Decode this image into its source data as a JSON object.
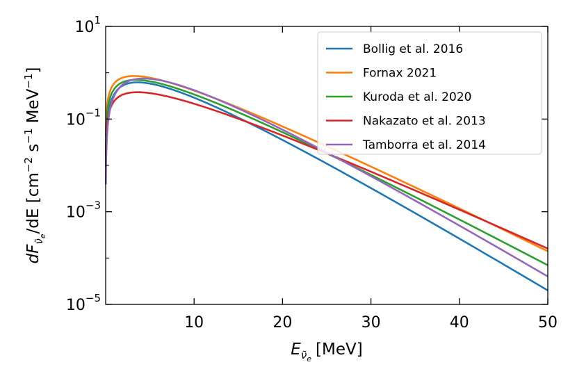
{
  "chart_data": {
    "type": "line",
    "x_label_base": "E",
    "x_label_sub": "ν̄",
    "x_label_subsub": "e",
    "x_label_unit": "[MeV]",
    "y_label_parts": {
      "dF": "dF",
      "sub": "ν̄",
      "subsub": "e",
      "rest": "/dE [cm",
      "exp1": "−2",
      "mid1": " s",
      "exp2": "−1",
      "mid2": " MeV",
      "exp3": "−1",
      "end": "]"
    },
    "x_range": [
      0,
      50
    ],
    "y_range_log10": [
      -5,
      1
    ],
    "x_ticks": [
      10,
      20,
      30,
      40,
      50
    ],
    "y_ticks": [
      {
        "base": "10",
        "exp": "1",
        "log": 1
      },
      {
        "base": "10",
        "exp": "−1",
        "log": -1
      },
      {
        "base": "10",
        "exp": "−3",
        "log": -3
      },
      {
        "base": "10",
        "exp": "−5",
        "log": -5
      }
    ],
    "legend_position": "top-right",
    "series": [
      {
        "name": "Bollig et al. 2016",
        "color": "#1f77b4",
        "peak_energy": 3.6,
        "peak_flux": 0.62,
        "flux_at_50": 2e-05
      },
      {
        "name": "Fornax 2021",
        "color": "#ff7f0e",
        "peak_energy": 3.2,
        "peak_flux": 0.85,
        "flux_at_50": 0.00014
      },
      {
        "name": "Kuroda et al. 2020",
        "color": "#2ca02c",
        "peak_energy": 3.4,
        "peak_flux": 0.7,
        "flux_at_50": 7e-05
      },
      {
        "name": "Nakazato et al. 2013",
        "color": "#d62728",
        "peak_energy": 3.6,
        "peak_flux": 0.38,
        "flux_at_50": 0.00016
      },
      {
        "name": "Tamborra et al. 2014",
        "color": "#9467bd",
        "peak_energy": 4.3,
        "peak_flux": 0.75,
        "flux_at_50": 4e-05
      }
    ]
  }
}
